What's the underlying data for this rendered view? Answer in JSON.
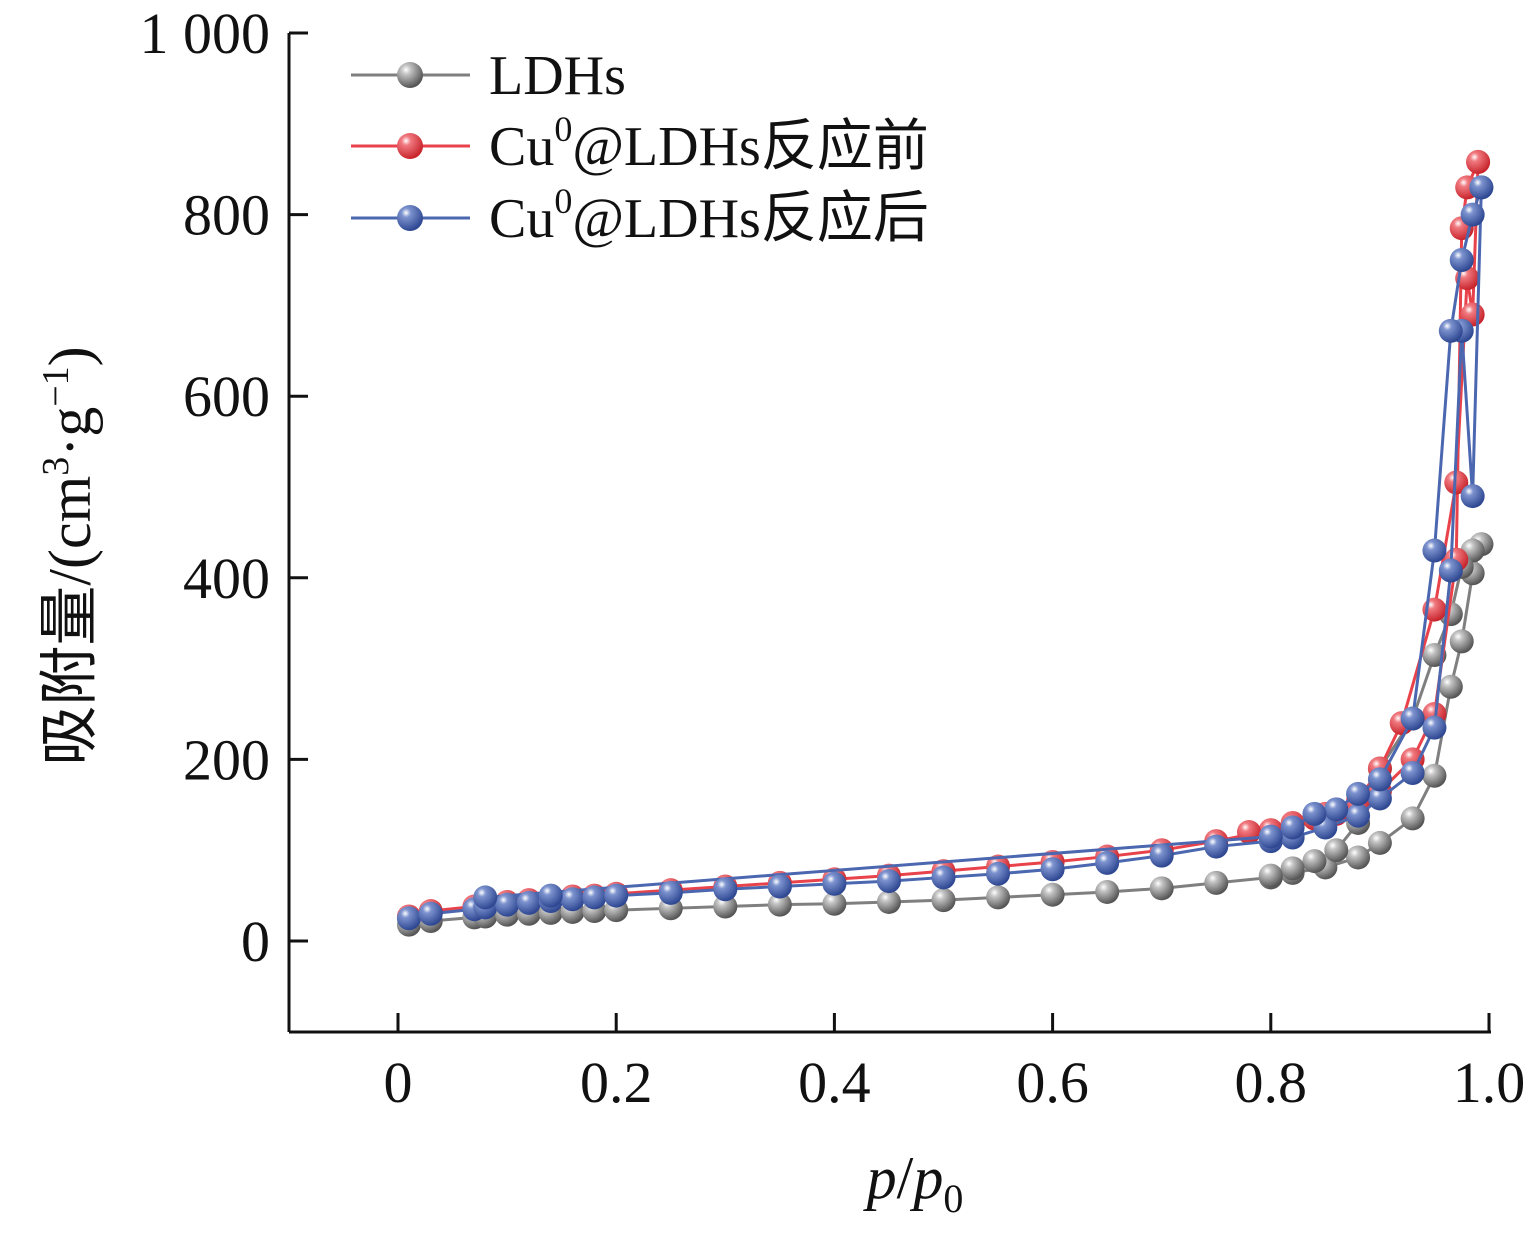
{
  "chart_data": {
    "type": "scatter",
    "xlabel": "p/p0",
    "ylabel": "吸附量/(cm3·g-1)",
    "xlim": [
      -0.1,
      1.0
    ],
    "ylim": [
      -100,
      1000
    ],
    "xticks": [
      0,
      0.2,
      0.4,
      0.6,
      0.8,
      1.0
    ],
    "xtick_labels": [
      "0",
      "0.2",
      "0.4",
      "0.6",
      "0.8",
      "1.0"
    ],
    "yticks": [
      0,
      200,
      400,
      600,
      800,
      1000
    ],
    "ytick_labels": [
      "0",
      "200",
      "400",
      "600",
      "800",
      "1 000"
    ],
    "grid": false,
    "legend_position": "top-left",
    "series": [
      {
        "name": "LDHs",
        "color": "#7f7f7f",
        "adsorption": {
          "x": [
            0.01,
            0.03,
            0.07,
            0.08,
            0.1,
            0.12,
            0.14,
            0.16,
            0.18,
            0.2,
            0.25,
            0.3,
            0.35,
            0.4,
            0.45,
            0.5,
            0.55,
            0.6,
            0.65,
            0.7,
            0.75,
            0.8,
            0.82,
            0.85,
            0.88,
            0.9,
            0.93,
            0.95,
            0.965,
            0.975,
            0.985,
            0.993
          ],
          "y": [
            18,
            22,
            26,
            27,
            29,
            30,
            31,
            32,
            33,
            34,
            36,
            38,
            40,
            41,
            43,
            45,
            48,
            51,
            54,
            58,
            64,
            70,
            75,
            81,
            92,
            108,
            135,
            182,
            280,
            330,
            405,
            437
          ]
        },
        "desorption": {
          "x": [
            0.993,
            0.985,
            0.975,
            0.965,
            0.95,
            0.93,
            0.9,
            0.88,
            0.86,
            0.84,
            0.82,
            0.8
          ],
          "y": [
            437,
            430,
            412,
            360,
            315,
            245,
            190,
            130,
            100,
            88,
            80,
            72
          ]
        }
      },
      {
        "name": "Cu0@LDHs反应前",
        "color": "#e8424b",
        "adsorption": {
          "x": [
            0.01,
            0.03,
            0.07,
            0.08,
            0.1,
            0.12,
            0.14,
            0.16,
            0.18,
            0.2,
            0.25,
            0.3,
            0.35,
            0.4,
            0.45,
            0.5,
            0.55,
            0.6,
            0.65,
            0.7,
            0.75,
            0.8,
            0.82,
            0.85,
            0.88,
            0.9,
            0.92,
            0.95,
            0.97,
            0.98,
            0.985,
            0.99
          ],
          "y": [
            27,
            33,
            38,
            40,
            43,
            45,
            47,
            49,
            50,
            52,
            56,
            60,
            64,
            68,
            72,
            77,
            82,
            87,
            93,
            100,
            110,
            122,
            130,
            140,
            155,
            190,
            240,
            365,
            505,
            730,
            690,
            858
          ]
        },
        "desorption": {
          "x": [
            0.99,
            0.98,
            0.975,
            0.97,
            0.95,
            0.93,
            0.9,
            0.88,
            0.86,
            0.84,
            0.82,
            0.8,
            0.78
          ],
          "y": [
            858,
            830,
            785,
            420,
            250,
            200,
            165,
            150,
            140,
            135,
            128,
            122,
            120
          ]
        }
      },
      {
        "name": "Cu0@LDHs反应后",
        "color": "#4a67b0",
        "adsorption": {
          "x": [
            0.01,
            0.03,
            0.07,
            0.08,
            0.1,
            0.12,
            0.14,
            0.16,
            0.18,
            0.2,
            0.25,
            0.3,
            0.35,
            0.4,
            0.45,
            0.5,
            0.55,
            0.6,
            0.65,
            0.7,
            0.75,
            0.8,
            0.82,
            0.85,
            0.88,
            0.9,
            0.93,
            0.95,
            0.965,
            0.975,
            0.985,
            0.993
          ],
          "y": [
            25,
            30,
            35,
            37,
            40,
            42,
            44,
            46,
            48,
            50,
            53,
            57,
            60,
            63,
            66,
            70,
            74,
            79,
            86,
            94,
            104,
            110,
            114,
            125,
            138,
            157,
            185,
            235,
            408,
            672,
            490,
            830
          ]
        },
        "desorption": {
          "x": [
            0.993,
            0.985,
            0.975,
            0.965,
            0.95,
            0.93,
            0.9,
            0.88,
            0.86,
            0.84,
            0.82,
            0.8,
            0.08,
            0.14
          ],
          "y": [
            830,
            800,
            750,
            672,
            430,
            245,
            178,
            162,
            145,
            140,
            125,
            115,
            48,
            50
          ]
        }
      }
    ]
  }
}
